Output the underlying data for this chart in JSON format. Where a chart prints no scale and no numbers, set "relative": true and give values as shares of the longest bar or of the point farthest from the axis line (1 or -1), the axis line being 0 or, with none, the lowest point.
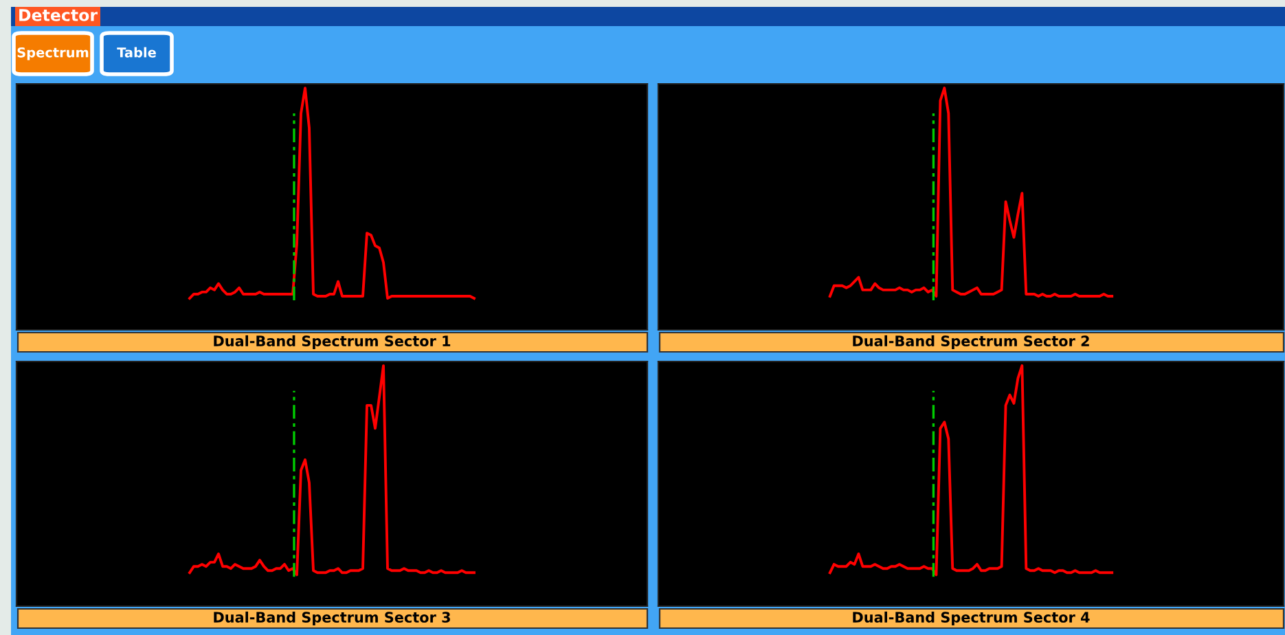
{
  "chart_data": [
    {
      "type": "other",
      "annotations": [
        "Detector",
        "Spectrum",
        "Table"
      ]
    },
    {
      "type": "line",
      "relative": true,
      "title": "Dual-Band Spectrum Sector 1",
      "categories": [
        null,
        null,
        null,
        null,
        null,
        null,
        null,
        null,
        null,
        null,
        null,
        null,
        null,
        null,
        null,
        null,
        null,
        null,
        null,
        null,
        null,
        null,
        null,
        null,
        null,
        null,
        null,
        null,
        null,
        null,
        null,
        null,
        null,
        null,
        null,
        null,
        null,
        null,
        null,
        null,
        null,
        null,
        null,
        null,
        null,
        null,
        null,
        null,
        null,
        null,
        null,
        null,
        null,
        null,
        null,
        null,
        null,
        null,
        null,
        null,
        null,
        null,
        null,
        null,
        null,
        null,
        null,
        null,
        null,
        null
      ],
      "series": [
        {
          "color": "#ff0000",
          "values": [
            0,
            0.02,
            0.02,
            0.03,
            0.03,
            0.05,
            0.04,
            0.07,
            0.04,
            0.02,
            0.02,
            0.03,
            0.05,
            0.02,
            0.02,
            0.02,
            0.02,
            0.03,
            0.02,
            0.02,
            0.02,
            0.02,
            0.02,
            0.02,
            0.02,
            0.02,
            0.26,
            0.88,
            1.0,
            0.81,
            0.02,
            0.01,
            0.01,
            0.01,
            0.02,
            0.02,
            0.08,
            0.01,
            0.01,
            0.01,
            0.01,
            0.01,
            0.01,
            0.31,
            0.3,
            0.25,
            0.24,
            0.17,
            0,
            0.01,
            0.01,
            0.01,
            0.01,
            0.01,
            0.01,
            0.01,
            0.01,
            0.01,
            0.01,
            0.01,
            0.01,
            0.01,
            0.01,
            0.01,
            0.01,
            0.01,
            0.01,
            0.01,
            0.01,
            0
          ]
        }
      ]
    },
    {
      "type": "line",
      "relative": true,
      "title": "Dual-Band Spectrum Sector 2",
      "categories": [
        null,
        null,
        null,
        null,
        null,
        null,
        null,
        null,
        null,
        null,
        null,
        null,
        null,
        null,
        null,
        null,
        null,
        null,
        null,
        null,
        null,
        null,
        null,
        null,
        null,
        null,
        null,
        null,
        null,
        null,
        null,
        null,
        null,
        null,
        null,
        null,
        null,
        null,
        null,
        null,
        null,
        null,
        null,
        null,
        null,
        null,
        null,
        null,
        null,
        null,
        null,
        null,
        null,
        null,
        null,
        null,
        null,
        null,
        null,
        null,
        null,
        null,
        null,
        null,
        null,
        null,
        null,
        null,
        null,
        null
      ],
      "series": [
        {
          "color": "#ff0000",
          "values": [
            0.01,
            0.06,
            0.06,
            0.06,
            0.05,
            0.06,
            0.08,
            0.1,
            0.04,
            0.04,
            0.04,
            0.07,
            0.05,
            0.04,
            0.04,
            0.04,
            0.04,
            0.05,
            0.04,
            0.04,
            0.03,
            0.04,
            0.04,
            0.05,
            0.03,
            0.04,
            0.01,
            0.94,
            1.0,
            0.88,
            0.04,
            0.03,
            0.02,
            0.02,
            0.03,
            0.04,
            0.05,
            0.02,
            0.02,
            0.02,
            0.02,
            0.03,
            0.04,
            0.46,
            0.37,
            0.29,
            0.4,
            0.5,
            0.02,
            0.02,
            0.02,
            0.01,
            0.02,
            0.01,
            0.01,
            0.02,
            0.01,
            0.01,
            0.01,
            0.01,
            0.02,
            0.01,
            0.01,
            0.01,
            0.01,
            0.01,
            0.01,
            0.02,
            0.01,
            0.01
          ]
        }
      ]
    },
    {
      "type": "line",
      "relative": true,
      "title": "Dual-Band Spectrum Sector 3",
      "categories": [
        null,
        null,
        null,
        null,
        null,
        null,
        null,
        null,
        null,
        null,
        null,
        null,
        null,
        null,
        null,
        null,
        null,
        null,
        null,
        null,
        null,
        null,
        null,
        null,
        null,
        null,
        null,
        null,
        null,
        null,
        null,
        null,
        null,
        null,
        null,
        null,
        null,
        null,
        null,
        null,
        null,
        null,
        null,
        null,
        null,
        null,
        null,
        null,
        null,
        null,
        null,
        null,
        null,
        null,
        null,
        null,
        null,
        null,
        null,
        null,
        null,
        null,
        null,
        null,
        null,
        null,
        null,
        null,
        null,
        null
      ],
      "series": [
        {
          "color": "#ff0000",
          "values": [
            0.01,
            0.04,
            0.04,
            0.05,
            0.04,
            0.06,
            0.06,
            0.1,
            0.04,
            0.04,
            0.03,
            0.05,
            0.04,
            0.03,
            0.03,
            0.03,
            0.04,
            0.07,
            0.04,
            0.02,
            0.02,
            0.03,
            0.03,
            0.05,
            0.02,
            0.03,
            0,
            0.5,
            0.55,
            0.44,
            0.02,
            0.01,
            0.01,
            0.01,
            0.02,
            0.02,
            0.03,
            0.01,
            0.01,
            0.02,
            0.02,
            0.02,
            0.03,
            0.81,
            0.81,
            0.7,
            0.85,
            1.0,
            0.03,
            0.02,
            0.02,
            0.02,
            0.03,
            0.02,
            0.02,
            0.02,
            0.01,
            0.01,
            0.02,
            0.01,
            0.01,
            0.02,
            0.01,
            0.01,
            0.01,
            0.01,
            0.02,
            0.01,
            0.01,
            0.01
          ]
        }
      ]
    },
    {
      "type": "line",
      "relative": true,
      "title": "Dual-Band Spectrum Sector 4",
      "categories": [
        null,
        null,
        null,
        null,
        null,
        null,
        null,
        null,
        null,
        null,
        null,
        null,
        null,
        null,
        null,
        null,
        null,
        null,
        null,
        null,
        null,
        null,
        null,
        null,
        null,
        null,
        null,
        null,
        null,
        null,
        null,
        null,
        null,
        null,
        null,
        null,
        null,
        null,
        null,
        null,
        null,
        null,
        null,
        null,
        null,
        null,
        null,
        null,
        null,
        null,
        null,
        null,
        null,
        null,
        null,
        null,
        null,
        null,
        null,
        null,
        null,
        null,
        null,
        null,
        null,
        null,
        null,
        null,
        null,
        null
      ],
      "series": [
        {
          "color": "#ff0000",
          "values": [
            0.01,
            0.05,
            0.04,
            0.04,
            0.04,
            0.06,
            0.05,
            0.1,
            0.04,
            0.04,
            0.04,
            0.05,
            0.04,
            0.03,
            0.03,
            0.04,
            0.04,
            0.05,
            0.04,
            0.03,
            0.03,
            0.03,
            0.03,
            0.04,
            0.03,
            0.03,
            0,
            0.7,
            0.73,
            0.65,
            0.03,
            0.02,
            0.02,
            0.02,
            0.02,
            0.03,
            0.05,
            0.02,
            0.02,
            0.03,
            0.03,
            0.03,
            0.04,
            0.81,
            0.86,
            0.82,
            0.94,
            1.0,
            0.03,
            0.02,
            0.02,
            0.03,
            0.02,
            0.02,
            0.02,
            0.01,
            0.02,
            0.02,
            0.01,
            0.01,
            0.02,
            0.01,
            0.01,
            0.01,
            0.01,
            0.02,
            0.01,
            0.01,
            0.01,
            0.01
          ]
        }
      ]
    }
  ]
}
